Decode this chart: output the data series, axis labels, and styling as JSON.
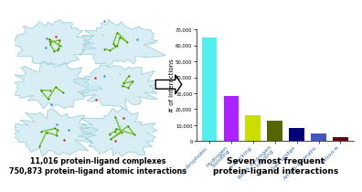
{
  "categories": [
    "Hydrophobic",
    "Hydrogen\nbonding",
    "π-stacking",
    "Weak hydrogen\nbonding",
    "Salt bridge",
    "Amino-aromatic",
    "Cation-π"
  ],
  "values": [
    65000,
    28000,
    16000,
    13000,
    8000,
    5000,
    2500
  ],
  "bar_colors": [
    "#55EEEE",
    "#AA22FF",
    "#CCDD00",
    "#556600",
    "#000077",
    "#4455BB",
    "#660011"
  ],
  "ylabel": "# of Interactions",
  "ylim": [
    0,
    70000
  ],
  "yticks": [
    0,
    10000,
    20000,
    30000,
    40000,
    50000,
    60000,
    70000
  ],
  "title_chart": "Seven most frequent\nprotein-ligand interactions",
  "left_text_line1": "11,016 protein-ligand complexes",
  "left_text_line2": "750,873 protein-ligand atomic interactions",
  "background_color": "#FFFFFF",
  "bar_width": 0.7,
  "ylabel_fontsize": 5,
  "title_fontsize": 6.5,
  "label_fontsize": 4.5
}
